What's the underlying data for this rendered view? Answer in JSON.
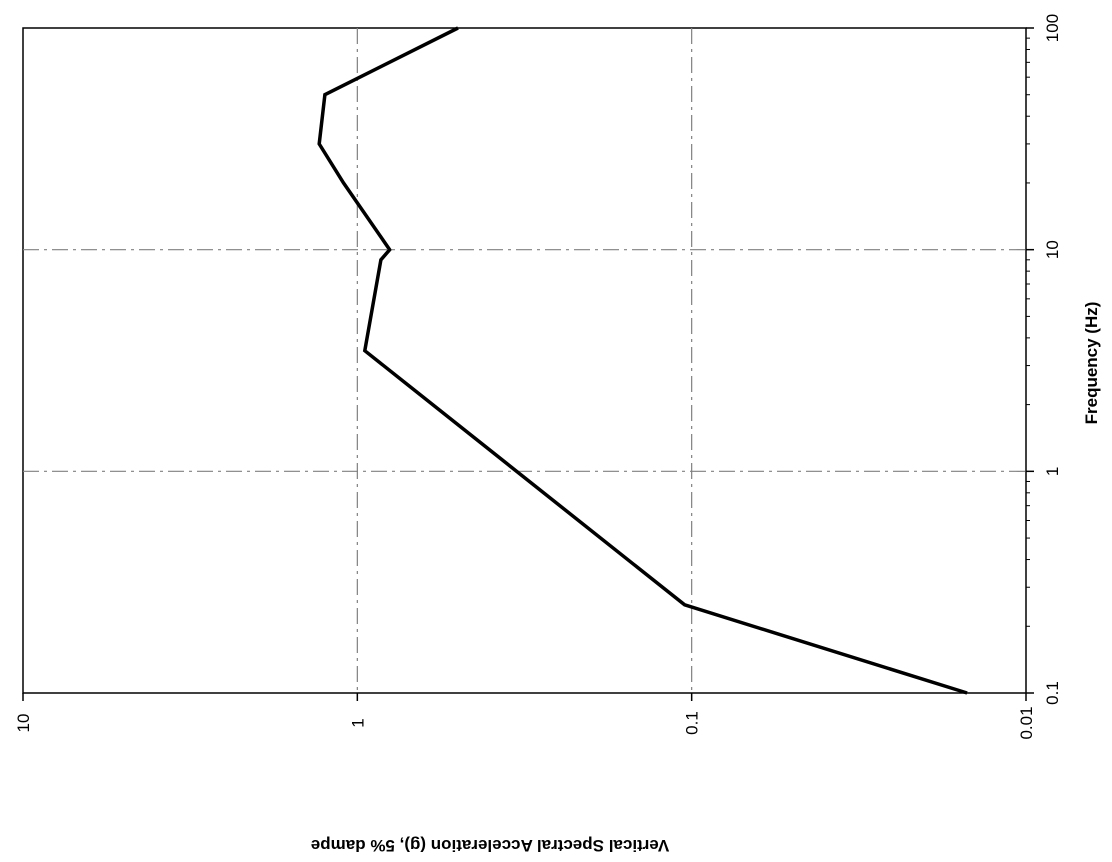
{
  "chart_data": {
    "type": "line",
    "title": "",
    "orientation": "rotated-90-clockwise",
    "xlabel": "Frequency (Hz)",
    "ylabel": "Vertical Spectral Acceleration (g), 5% dampe",
    "x_scale": "log",
    "y_scale": "log",
    "xlim": [
      0.1,
      100
    ],
    "ylim": [
      0.01,
      10
    ],
    "x_ticks": [
      "0.1",
      "1",
      "10",
      "100"
    ],
    "y_ticks": [
      "0.01",
      "0.1",
      "1",
      "10"
    ],
    "grid": true,
    "legend": "none",
    "line_color": "#000000",
    "grid_color": "#808080",
    "series": [
      {
        "x": [
          0.1,
          0.25,
          3.5,
          9,
          10,
          20,
          30,
          50,
          100
        ],
        "y": [
          0.015,
          0.105,
          0.95,
          0.85,
          0.8,
          1.1,
          1.3,
          1.25,
          0.5
        ]
      }
    ]
  }
}
